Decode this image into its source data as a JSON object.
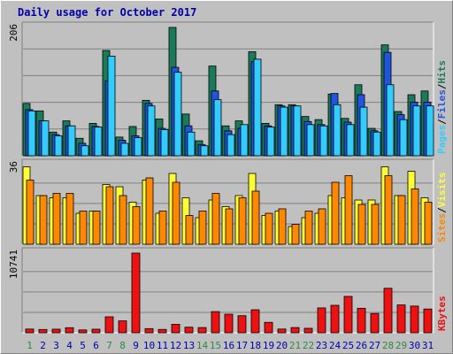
{
  "title": "Daily usage for October 2017",
  "colors": {
    "pages": "#33ccff",
    "files": "#2255dd",
    "hits": "#1b7a5a",
    "sites": "#ff8800",
    "visits": "#ffff33",
    "kbytes": "#ee1111",
    "weekend_day": "#338844",
    "weekday_day": "#0000aa"
  },
  "chart_data": [
    {
      "type": "bar",
      "panel": "hits-files-pages",
      "ymax_label": "206",
      "legend": [
        "Pages",
        "/",
        "Files",
        "/",
        "Hits"
      ],
      "categories": [
        "1",
        "2",
        "3",
        "4",
        "5",
        "6",
        "7",
        "8",
        "9",
        "10",
        "11",
        "12",
        "13",
        "14",
        "15",
        "16",
        "17",
        "18",
        "19",
        "20",
        "21",
        "22",
        "23",
        "24",
        "25",
        "26",
        "27",
        "28",
        "29",
        "30",
        "31"
      ],
      "series": [
        {
          "name": "Hits",
          "values": [
            84,
            72,
            38,
            56,
            28,
            52,
            169,
            30,
            47,
            89,
            59,
            206,
            67,
            24,
            144,
            48,
            56,
            167,
            52,
            82,
            82,
            63,
            58,
            99,
            60,
            114,
            44,
            178,
            71,
            98,
            104
          ]
        },
        {
          "name": "Files",
          "values": [
            74,
            56,
            34,
            48,
            20,
            47,
            120,
            25,
            32,
            84,
            44,
            142,
            48,
            18,
            104,
            40,
            44,
            151,
            48,
            80,
            80,
            55,
            50,
            100,
            54,
            98,
            40,
            166,
            66,
            86,
            86
          ]
        },
        {
          "name": "Pages",
          "values": [
            72,
            56,
            32,
            48,
            16,
            46,
            160,
            20,
            29,
            80,
            42,
            134,
            38,
            16,
            90,
            34,
            50,
            155,
            46,
            78,
            80,
            50,
            48,
            82,
            50,
            78,
            38,
            114,
            58,
            80,
            80
          ]
        }
      ]
    },
    {
      "type": "bar",
      "panel": "visits-sites",
      "ymax_label": "36",
      "legend": [
        "Sites",
        "/",
        "Visits"
      ],
      "categories": [
        "1",
        "2",
        "3",
        "4",
        "5",
        "6",
        "7",
        "8",
        "9",
        "10",
        "11",
        "12",
        "13",
        "14",
        "15",
        "16",
        "17",
        "18",
        "19",
        "20",
        "21",
        "22",
        "23",
        "24",
        "25",
        "26",
        "27",
        "28",
        "29",
        "30",
        "31"
      ],
      "series": [
        {
          "name": "Visits",
          "values": [
            35,
            22,
            21,
            21,
            14,
            15,
            27,
            26,
            19,
            29,
            14,
            32,
            21,
            12,
            20,
            17,
            22,
            32,
            13,
            15,
            8,
            12,
            14,
            22,
            21,
            20,
            20,
            35,
            22,
            33,
            21
          ]
        },
        {
          "name": "Sites",
          "values": [
            29,
            22,
            23,
            23,
            15,
            15,
            26,
            22,
            17,
            30,
            15,
            28,
            13,
            15,
            23,
            16,
            21,
            24,
            14,
            16,
            9,
            15,
            16,
            28,
            31,
            18,
            18,
            31,
            22,
            25,
            19
          ]
        }
      ]
    },
    {
      "type": "bar",
      "panel": "kbytes",
      "ymax_label": "10741",
      "legend": [
        "KBytes"
      ],
      "categories": [
        "1",
        "2",
        "3",
        "4",
        "5",
        "6",
        "7",
        "8",
        "9",
        "10",
        "11",
        "12",
        "13",
        "14",
        "15",
        "16",
        "17",
        "18",
        "19",
        "20",
        "21",
        "22",
        "23",
        "24",
        "25",
        "26",
        "27",
        "28",
        "29",
        "30",
        "31"
      ],
      "series": [
        {
          "name": "KBytes",
          "values": [
            500,
            440,
            480,
            680,
            380,
            480,
            2150,
            1600,
            10741,
            560,
            450,
            1140,
            750,
            700,
            2850,
            2500,
            2300,
            3100,
            1400,
            500,
            700,
            600,
            3350,
            3700,
            4900,
            3300,
            2600,
            6000,
            3750,
            3600,
            3200
          ]
        }
      ]
    }
  ],
  "x_axis": {
    "labels": [
      "1",
      "2",
      "3",
      "4",
      "5",
      "6",
      "7",
      "8",
      "9",
      "10",
      "11",
      "12",
      "13",
      "14",
      "15",
      "16",
      "17",
      "18",
      "19",
      "20",
      "21",
      "22",
      "23",
      "24",
      "25",
      "26",
      "27",
      "28",
      "29",
      "30",
      "31"
    ],
    "weekend_days": [
      "1",
      "7",
      "8",
      "14",
      "15",
      "21",
      "22",
      "28",
      "29"
    ]
  }
}
